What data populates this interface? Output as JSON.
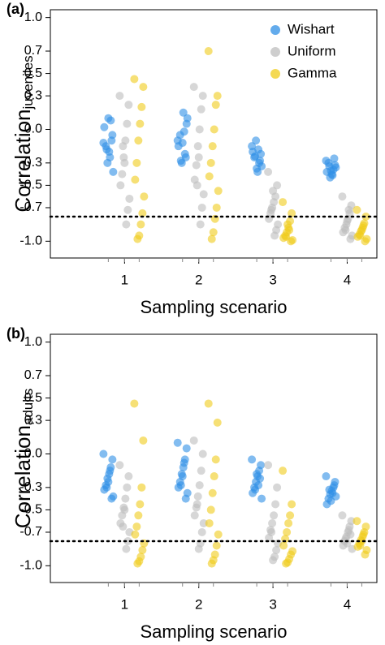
{
  "chart_data": [
    {
      "type": "strip",
      "panel_label": "(a)",
      "xlabel": "Sampling scenario",
      "ylabel": "Correlation",
      "ylabel_sub": "juveniles",
      "categories": [
        "1",
        "2",
        "3",
        "4"
      ],
      "ylim": [
        -1.15,
        1.07
      ],
      "yticks": [
        {
          "value": 1,
          "label": "1.0"
        },
        0.7,
        0.5,
        0.3,
        {
          "value": 0,
          "label": "0.0"
        },
        -0.3,
        -0.5,
        -0.7,
        {
          "value": -1,
          "label": "-1.0"
        }
      ],
      "hline": -0.78,
      "legend": "top-right",
      "series": [
        {
          "name": "Wishart",
          "color": "#2f8fe6",
          "values": [
            [
              -0.12,
              -0.05,
              0.08,
              -0.2,
              -0.3,
              -0.15,
              0.02,
              -0.38,
              -0.1,
              -0.25,
              0.1,
              -0.18
            ],
            [
              -0.1,
              0.05,
              -0.22,
              0.15,
              -0.3,
              -0.05,
              -0.15,
              0.1,
              -0.25,
              -0.02,
              -0.12,
              -0.28
            ],
            [
              -0.15,
              -0.22,
              -0.3,
              -0.38,
              -0.1,
              -0.25,
              -0.2,
              -0.33,
              -0.28,
              -0.18,
              -0.35,
              -0.24
            ],
            [
              -0.28,
              -0.32,
              -0.36,
              -0.4,
              -0.43,
              -0.3,
              -0.38,
              -0.34,
              -0.26,
              -0.41,
              -0.37,
              -0.33
            ]
          ]
        },
        {
          "name": "Uniform",
          "color": "#bdbdbd",
          "values": [
            [
              0.3,
              0.22,
              0.05,
              -0.1,
              -0.25,
              -0.4,
              -0.5,
              -0.62,
              -0.72,
              -0.85,
              -0.3,
              -0.15
            ],
            [
              0.38,
              0.3,
              0.18,
              0.0,
              -0.15,
              -0.32,
              -0.45,
              -0.58,
              -0.7,
              -0.85,
              -0.25,
              -0.5
            ],
            [
              -0.38,
              -0.5,
              -0.6,
              -0.65,
              -0.7,
              -0.75,
              -0.8,
              -0.85,
              -0.9,
              -0.95,
              -0.55,
              -0.72
            ],
            [
              -0.6,
              -0.68,
              -0.75,
              -0.8,
              -0.85,
              -0.88,
              -0.92,
              -0.95,
              -0.98,
              -0.72,
              -0.82,
              -0.9
            ]
          ]
        },
        {
          "name": "Gamma",
          "color": "#f0cc1a",
          "values": [
            [
              0.45,
              0.38,
              0.2,
              0.05,
              -0.1,
              -0.3,
              -0.45,
              -0.6,
              -0.75,
              -0.85,
              -0.95,
              -0.98
            ],
            [
              0.7,
              0.3,
              0.22,
              0.0,
              -0.15,
              -0.3,
              -0.42,
              -0.55,
              -0.7,
              -0.8,
              -0.92,
              -0.98
            ],
            [
              -0.65,
              -0.75,
              -0.82,
              -0.88,
              -0.92,
              -0.95,
              -0.97,
              -0.99,
              -1.0,
              -0.9,
              -0.85,
              -0.96
            ],
            [
              -0.72,
              -0.78,
              -0.84,
              -0.88,
              -0.91,
              -0.94,
              -0.96,
              -0.98,
              -1.0,
              -0.86,
              -0.9,
              -0.95
            ]
          ]
        }
      ]
    },
    {
      "type": "strip",
      "panel_label": "(b)",
      "xlabel": "Sampling scenario",
      "ylabel": "Correlation",
      "ylabel_sub": "adults",
      "categories": [
        "1",
        "2",
        "3",
        "4"
      ],
      "ylim": [
        -1.15,
        1.07
      ],
      "yticks": [
        {
          "value": 1,
          "label": "1.0"
        },
        0.7,
        0.5,
        0.3,
        {
          "value": 0,
          "label": "0.0"
        },
        -0.3,
        -0.5,
        -0.7,
        {
          "value": -1,
          "label": "-1.0"
        }
      ],
      "hline": -0.78,
      "series": [
        {
          "name": "Wishart",
          "color": "#2f8fe6",
          "values": [
            [
              0.0,
              -0.05,
              -0.12,
              -0.18,
              -0.22,
              -0.28,
              -0.32,
              -0.38,
              -0.4,
              -0.15,
              -0.25,
              -0.3
            ],
            [
              0.1,
              0.05,
              -0.05,
              -0.12,
              -0.18,
              -0.25,
              -0.3,
              -0.35,
              -0.4,
              -0.08,
              -0.2,
              -0.28
            ],
            [
              -0.05,
              -0.1,
              -0.15,
              -0.2,
              -0.25,
              -0.3,
              -0.35,
              -0.4,
              -0.22,
              -0.28,
              -0.18,
              -0.32
            ],
            [
              -0.2,
              -0.25,
              -0.3,
              -0.33,
              -0.36,
              -0.4,
              -0.45,
              -0.38,
              -0.28,
              -0.35,
              -0.42,
              -0.32
            ]
          ]
        },
        {
          "name": "Uniform",
          "color": "#bdbdbd",
          "values": [
            [
              -0.1,
              -0.2,
              -0.3,
              -0.4,
              -0.48,
              -0.55,
              -0.62,
              -0.7,
              -0.78,
              -0.85,
              -0.5,
              -0.65
            ],
            [
              0.12,
              0.0,
              -0.15,
              -0.28,
              -0.38,
              -0.48,
              -0.55,
              -0.62,
              -0.7,
              -0.8,
              -0.85,
              -0.45
            ],
            [
              -0.1,
              -0.3,
              -0.45,
              -0.55,
              -0.62,
              -0.68,
              -0.75,
              -0.8,
              -0.86,
              -0.92,
              -0.95,
              -0.7
            ],
            [
              -0.55,
              -0.6,
              -0.65,
              -0.7,
              -0.74,
              -0.78,
              -0.82,
              -0.85,
              -0.72,
              -0.68,
              -0.8,
              -0.76
            ]
          ]
        },
        {
          "name": "Gamma",
          "color": "#f0cc1a",
          "values": [
            [
              0.45,
              0.12,
              -0.3,
              -0.45,
              -0.55,
              -0.65,
              -0.72,
              -0.8,
              -0.86,
              -0.92,
              -0.96,
              -0.98
            ],
            [
              0.45,
              0.28,
              -0.05,
              -0.2,
              -0.35,
              -0.5,
              -0.62,
              -0.72,
              -0.82,
              -0.9,
              -0.95,
              -0.98
            ],
            [
              -0.15,
              -0.45,
              -0.55,
              -0.62,
              -0.7,
              -0.76,
              -0.82,
              -0.87,
              -0.9,
              -0.94,
              -0.97,
              -0.98
            ],
            [
              -0.6,
              -0.65,
              -0.7,
              -0.74,
              -0.77,
              -0.8,
              -0.83,
              -0.86,
              -0.9,
              -0.72,
              -0.78,
              -0.82
            ]
          ]
        }
      ]
    }
  ]
}
